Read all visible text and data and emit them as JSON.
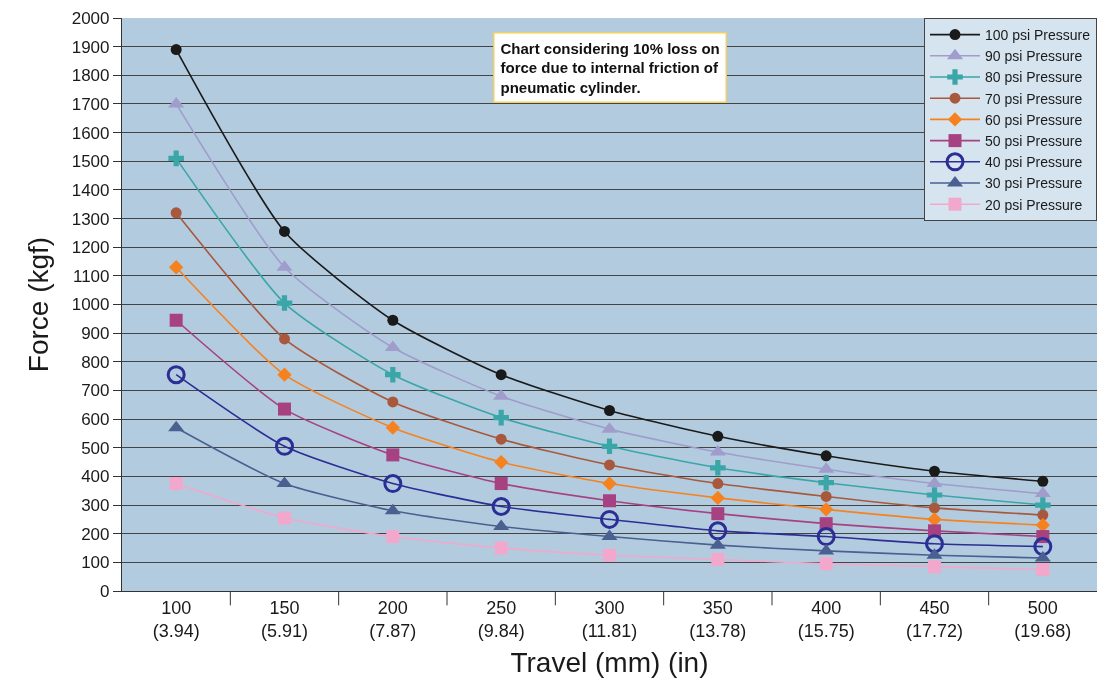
{
  "chart_data": {
    "type": "line",
    "xlabel": "Travel (mm) (in)",
    "ylabel": "Force (kgf)",
    "categories": [
      "100 (3.94)",
      "150 (5.91)",
      "200 (7.87)",
      "250 (9.84)",
      "300 (11.81)",
      "350 (13.78)",
      "400 (15.75)",
      "450 (17.72)",
      "500 (19.68)"
    ],
    "series": [
      {
        "name": "100 psi Pressure",
        "color": "#1a1a1a",
        "marker": "circle",
        "values": [
          1890,
          1255,
          945,
          755,
          630,
          540,
          472,
          418,
          383
        ]
      },
      {
        "name": "90 psi Pressure",
        "color": "#a09ccc",
        "marker": "triangle",
        "values": [
          1700,
          1130,
          850,
          680,
          565,
          485,
          425,
          375,
          340
        ]
      },
      {
        "name": "80 psi Pressure",
        "color": "#3aa6a8",
        "marker": "cross",
        "values": [
          1510,
          1005,
          755,
          605,
          505,
          430,
          378,
          335,
          300
        ]
      },
      {
        "name": "70 psi Pressure",
        "color": "#a8583c",
        "marker": "circle",
        "values": [
          1320,
          880,
          660,
          530,
          440,
          375,
          330,
          290,
          265
        ]
      },
      {
        "name": "60 psi Pressure",
        "color": "#f5821f",
        "marker": "diamond",
        "values": [
          1130,
          755,
          570,
          450,
          375,
          325,
          285,
          250,
          230
        ]
      },
      {
        "name": "50 psi Pressure",
        "color": "#a64282",
        "marker": "square",
        "values": [
          945,
          635,
          475,
          375,
          315,
          270,
          235,
          210,
          190
        ]
      },
      {
        "name": "40 psi Pressure",
        "color": "#2b2e94",
        "marker": "circle-open",
        "values": [
          755,
          505,
          375,
          295,
          250,
          210,
          190,
          165,
          155
        ]
      },
      {
        "name": "30 psi Pressure",
        "color": "#4a6090",
        "marker": "triangle",
        "values": [
          570,
          375,
          280,
          225,
          190,
          160,
          140,
          125,
          115
        ]
      },
      {
        "name": "20 psi Pressure",
        "color": "#f2a8cc",
        "marker": "square",
        "values": [
          375,
          255,
          190,
          150,
          125,
          110,
          95,
          85,
          75
        ]
      }
    ],
    "ylim": [
      0,
      2000
    ],
    "yticks": [
      0,
      100,
      200,
      300,
      400,
      500,
      600,
      700,
      800,
      900,
      1000,
      1100,
      1200,
      1300,
      1400,
      1500,
      1600,
      1700,
      1800,
      1900,
      2000
    ],
    "grid": "y",
    "legend": "top right",
    "annotations": [
      "Chart considering 10% loss on force due to internal friction of pneumatic cylinder."
    ]
  }
}
